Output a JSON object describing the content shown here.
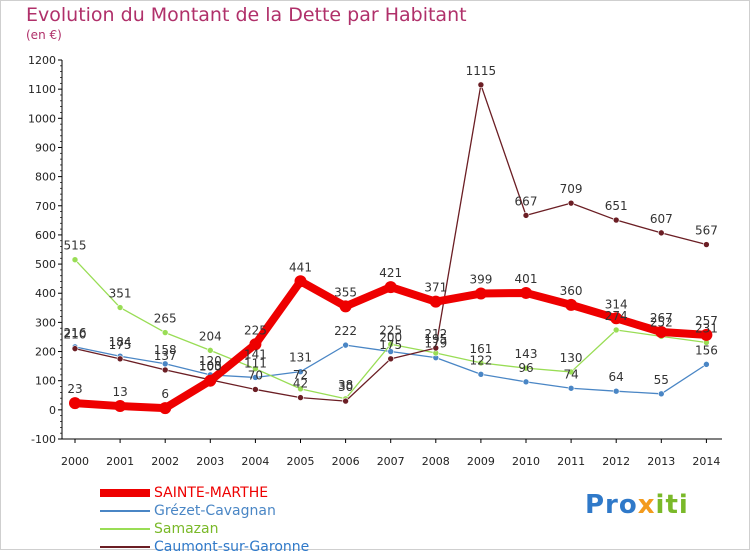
{
  "title": "Evolution du Montant de la Dette par Habitant",
  "unit": "(en €)",
  "logo": {
    "part1": "Pro",
    "part2": "x",
    "part3": "iti",
    "text": "Proxiti"
  },
  "colors": {
    "sainte": "#ee0000",
    "grezet": "#4a86c5",
    "samazan": "#99dd55",
    "caumont": "#6b1e24",
    "title": "#b0306a"
  },
  "chart_data": {
    "type": "line",
    "title": "Evolution du Montant de la Dette par Habitant",
    "ylabel": "(en €)",
    "xlabel": "",
    "x": [
      "2000",
      "2001",
      "2002",
      "2003",
      "2004",
      "2005",
      "2006",
      "2007",
      "2008",
      "2009",
      "2010",
      "2011",
      "2012",
      "2013",
      "2014"
    ],
    "ylim": [
      -100,
      1200
    ],
    "yticks": [
      -100,
      0,
      100,
      200,
      300,
      400,
      500,
      600,
      700,
      800,
      900,
      1000,
      1100,
      1200
    ],
    "grid": false,
    "legend_position": "bottom-left",
    "series": [
      {
        "name": "SAINTE-MARTHE",
        "color": "#ee0000",
        "values": [
          23,
          13,
          6,
          100,
          225,
          441,
          355,
          421,
          371,
          399,
          401,
          360,
          314,
          267,
          257
        ]
      },
      {
        "name": "Grézet-Cavagnan",
        "color": "#4a86c5",
        "values": [
          216,
          184,
          158,
          120,
          111,
          131,
          222,
          200,
          179,
          122,
          96,
          74,
          64,
          55,
          156
        ]
      },
      {
        "name": "Samazan",
        "color": "#99dd55",
        "values": [
          515,
          351,
          265,
          204,
          141,
          72,
          38,
          225,
          195,
          161,
          143,
          130,
          274,
          252,
          231
        ]
      },
      {
        "name": "Caumont-sur-Garonne",
        "color": "#6b1e24",
        "values": [
          210,
          175,
          137,
          103,
          70,
          42,
          30,
          175,
          212,
          1115,
          667,
          709,
          651,
          607,
          567
        ]
      }
    ]
  }
}
